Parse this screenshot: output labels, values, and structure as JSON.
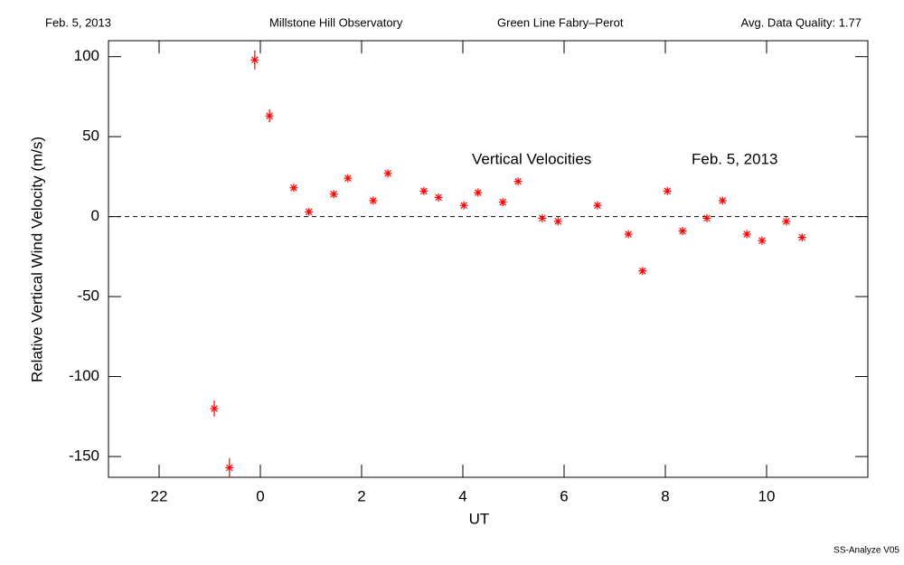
{
  "chart_data": {
    "type": "scatter",
    "header": [
      "Feb. 5, 2013",
      "Millstone Hill Observatory",
      "Green Line Fabry–Perot",
      "Avg. Data Quality: 1.77"
    ],
    "annotations": [
      "Vertical Velocities",
      "Feb. 5, 2013"
    ],
    "ylabel": "Relative Vertical Wind Velocity (m/s)",
    "xlabel": "UT",
    "footer": "SS-Analyze V05",
    "color": "#ff0000",
    "hline": 0,
    "x": [
      -0.11,
      0.18,
      -0.91,
      -0.61,
      0.66,
      0.96,
      1.45,
      1.73,
      2.23,
      2.52,
      3.23,
      3.52,
      4.02,
      4.3,
      4.79,
      5.09,
      5.57,
      5.88,
      6.66,
      7.27,
      7.55,
      8.04,
      8.34,
      8.82,
      9.13,
      9.61,
      9.91,
      10.39,
      10.7
    ],
    "values": [
      98,
      63,
      -120,
      -157,
      18,
      3,
      14,
      24,
      10,
      27,
      16,
      12,
      7,
      15,
      9,
      22,
      -1,
      -3,
      7,
      -11,
      -34,
      16,
      -9,
      -1,
      10,
      -11,
      -15,
      -3,
      -13
    ],
    "errors": [
      6,
      4,
      5,
      6,
      1.5,
      1.5,
      1.5,
      1.5,
      1.5,
      1.5,
      1.5,
      1.5,
      1.5,
      1.5,
      1.5,
      1.5,
      1.5,
      1.5,
      1.5,
      1.5,
      1.5,
      1.5,
      1.5,
      1.5,
      1.5,
      1.5,
      1.5,
      1.5,
      1.5
    ],
    "xlim": [
      -3,
      12
    ],
    "ylim": [
      -163,
      110
    ],
    "xticks": [
      {
        "value": -2,
        "label": "22"
      },
      0,
      2,
      4,
      6,
      8,
      10
    ],
    "yticks": [
      100,
      50,
      0,
      -50,
      -100,
      -150
    ]
  }
}
